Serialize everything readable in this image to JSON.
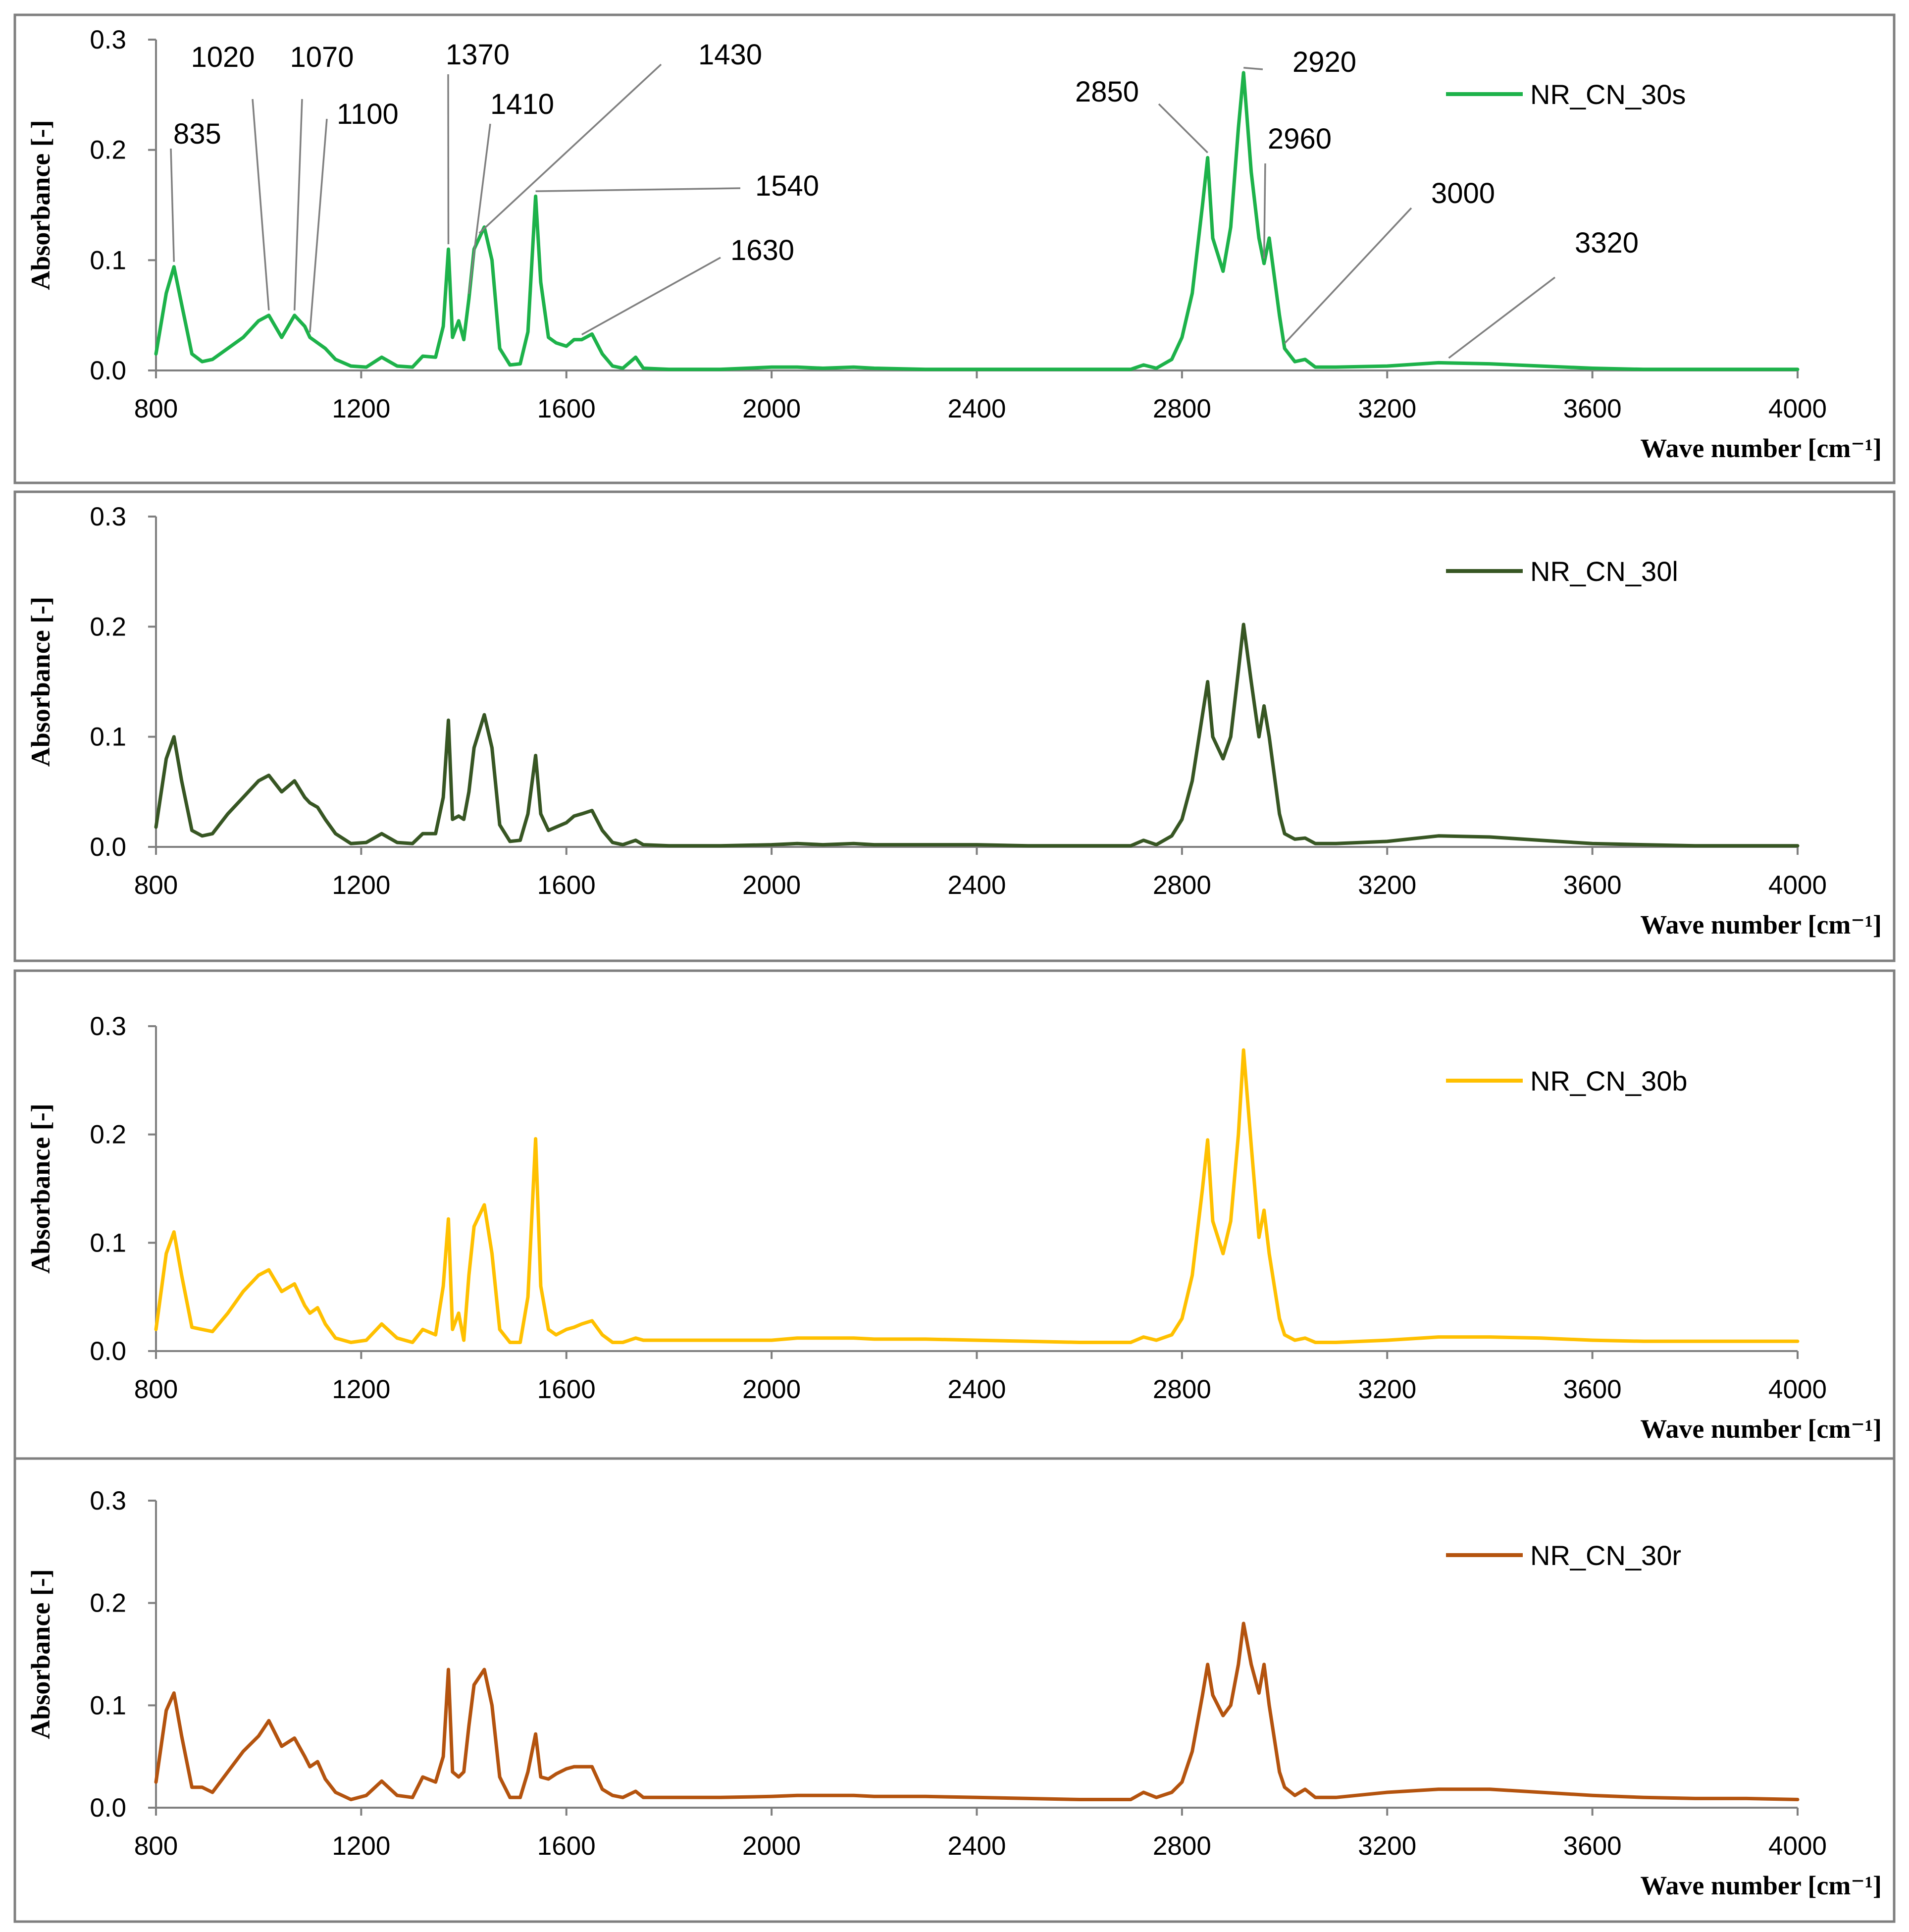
{
  "figure": {
    "panel_count": 4
  },
  "chart_data": [
    {
      "type": "line",
      "title": "",
      "xlabel": "Wave number [cm⁻¹]",
      "ylabel": "Absorbance [-]",
      "xlim": [
        800,
        4000
      ],
      "ylim": [
        0,
        0.3
      ],
      "xticks": [
        "800",
        "1200",
        "1600",
        "2000",
        "2400",
        "2800",
        "3200",
        "3600",
        "4000"
      ],
      "yticks": [
        "0.0",
        "0.1",
        "0.2",
        "0.3"
      ],
      "grid": false,
      "legend": "top-right",
      "series": [
        {
          "name": "NR_CN_30s",
          "color": "#1db24a",
          "x": [
            800,
            820,
            835,
            850,
            870,
            890,
            910,
            940,
            970,
            1000,
            1020,
            1045,
            1070,
            1090,
            1100,
            1115,
            1130,
            1150,
            1180,
            1210,
            1240,
            1270,
            1300,
            1320,
            1345,
            1360,
            1370,
            1378,
            1390,
            1400,
            1410,
            1420,
            1440,
            1455,
            1470,
            1490,
            1510,
            1525,
            1540,
            1550,
            1565,
            1580,
            1600,
            1615,
            1630,
            1650,
            1670,
            1690,
            1710,
            1735,
            1750,
            1800,
            1900,
            2000,
            2050,
            2100,
            2160,
            2200,
            2300,
            2400,
            2500,
            2600,
            2700,
            2725,
            2750,
            2780,
            2800,
            2820,
            2840,
            2850,
            2860,
            2880,
            2895,
            2910,
            2920,
            2935,
            2950,
            2960,
            2970,
            2990,
            3000,
            3020,
            3040,
            3060,
            3100,
            3200,
            3300,
            3400,
            3500,
            3600,
            3700,
            3800,
            3900,
            4000
          ],
          "y": [
            0.015,
            0.07,
            0.094,
            0.06,
            0.015,
            0.008,
            0.01,
            0.02,
            0.03,
            0.045,
            0.05,
            0.03,
            0.05,
            0.04,
            0.03,
            0.025,
            0.02,
            0.01,
            0.004,
            0.003,
            0.012,
            0.004,
            0.003,
            0.013,
            0.012,
            0.04,
            0.11,
            0.03,
            0.045,
            0.028,
            0.065,
            0.11,
            0.13,
            0.1,
            0.02,
            0.005,
            0.006,
            0.035,
            0.158,
            0.08,
            0.03,
            0.025,
            0.022,
            0.028,
            0.028,
            0.033,
            0.015,
            0.004,
            0.002,
            0.012,
            0.002,
            0.001,
            0.001,
            0.003,
            0.003,
            0.002,
            0.003,
            0.002,
            0.001,
            0.001,
            0.001,
            0.001,
            0.001,
            0.005,
            0.002,
            0.01,
            0.03,
            0.07,
            0.15,
            0.193,
            0.12,
            0.09,
            0.13,
            0.22,
            0.27,
            0.18,
            0.12,
            0.097,
            0.12,
            0.05,
            0.02,
            0.008,
            0.01,
            0.003,
            0.003,
            0.004,
            0.007,
            0.006,
            0.004,
            0.002,
            0.001,
            0.001,
            0.001,
            0.001
          ]
        }
      ],
      "annotations": [
        "835",
        "1020",
        "1070",
        "1100",
        "1370",
        "1410",
        "1430",
        "1540",
        "1630",
        "2850",
        "2920",
        "2960",
        "3000",
        "3320"
      ]
    },
    {
      "type": "line",
      "title": "",
      "xlabel": "Wave number [cm⁻¹]",
      "ylabel": "Absorbance [-]",
      "xlim": [
        800,
        4000
      ],
      "ylim": [
        0,
        0.3
      ],
      "xticks": [
        "800",
        "1200",
        "1600",
        "2000",
        "2400",
        "2800",
        "3200",
        "3600",
        "4000"
      ],
      "yticks": [
        "0.0",
        "0.1",
        "0.2",
        "0.3"
      ],
      "grid": false,
      "legend": "top-right",
      "series": [
        {
          "name": "NR_CN_30l",
          "color": "#375623",
          "x": [
            800,
            820,
            835,
            850,
            870,
            890,
            910,
            940,
            970,
            1000,
            1020,
            1045,
            1070,
            1090,
            1100,
            1115,
            1130,
            1150,
            1180,
            1210,
            1240,
            1270,
            1300,
            1320,
            1345,
            1360,
            1370,
            1378,
            1390,
            1400,
            1410,
            1420,
            1440,
            1455,
            1470,
            1490,
            1510,
            1525,
            1540,
            1550,
            1565,
            1580,
            1600,
            1615,
            1630,
            1650,
            1670,
            1690,
            1710,
            1735,
            1750,
            1800,
            1900,
            2000,
            2050,
            2100,
            2160,
            2200,
            2300,
            2400,
            2500,
            2600,
            2700,
            2725,
            2750,
            2780,
            2800,
            2820,
            2840,
            2850,
            2860,
            2880,
            2895,
            2910,
            2920,
            2935,
            2950,
            2960,
            2970,
            2990,
            3000,
            3020,
            3040,
            3060,
            3100,
            3200,
            3300,
            3400,
            3500,
            3600,
            3700,
            3800,
            3900,
            4000
          ],
          "y": [
            0.018,
            0.08,
            0.1,
            0.06,
            0.015,
            0.01,
            0.012,
            0.03,
            0.045,
            0.06,
            0.065,
            0.05,
            0.06,
            0.045,
            0.04,
            0.036,
            0.025,
            0.012,
            0.003,
            0.004,
            0.012,
            0.004,
            0.003,
            0.012,
            0.012,
            0.045,
            0.115,
            0.025,
            0.028,
            0.025,
            0.05,
            0.09,
            0.12,
            0.09,
            0.02,
            0.005,
            0.006,
            0.03,
            0.083,
            0.03,
            0.015,
            0.018,
            0.022,
            0.028,
            0.03,
            0.033,
            0.015,
            0.004,
            0.002,
            0.006,
            0.002,
            0.001,
            0.001,
            0.002,
            0.003,
            0.002,
            0.003,
            0.002,
            0.002,
            0.002,
            0.001,
            0.001,
            0.001,
            0.006,
            0.002,
            0.01,
            0.025,
            0.06,
            0.12,
            0.15,
            0.1,
            0.08,
            0.1,
            0.16,
            0.202,
            0.15,
            0.1,
            0.128,
            0.1,
            0.03,
            0.012,
            0.007,
            0.008,
            0.003,
            0.003,
            0.005,
            0.01,
            0.009,
            0.006,
            0.003,
            0.002,
            0.001,
            0.001,
            0.001
          ]
        }
      ]
    },
    {
      "type": "line",
      "title": "",
      "xlabel": "Wave number [cm⁻¹]",
      "ylabel": "Absorbance [-]",
      "xlim": [
        800,
        4000
      ],
      "ylim": [
        0,
        0.3
      ],
      "xticks": [
        "800",
        "1200",
        "1600",
        "2000",
        "2400",
        "2800",
        "3200",
        "3600",
        "4000"
      ],
      "yticks": [
        "0.0",
        "0.1",
        "0.2",
        "0.3"
      ],
      "grid": false,
      "legend": "top-right",
      "series": [
        {
          "name": "NR_CN_30b",
          "color": "#ffc000",
          "x": [
            800,
            820,
            835,
            850,
            870,
            890,
            910,
            940,
            970,
            1000,
            1020,
            1045,
            1070,
            1090,
            1100,
            1115,
            1130,
            1150,
            1180,
            1210,
            1240,
            1270,
            1300,
            1320,
            1345,
            1360,
            1370,
            1378,
            1390,
            1400,
            1410,
            1420,
            1440,
            1455,
            1470,
            1490,
            1510,
            1525,
            1540,
            1550,
            1565,
            1580,
            1600,
            1615,
            1630,
            1650,
            1670,
            1690,
            1710,
            1735,
            1750,
            1800,
            1900,
            2000,
            2050,
            2100,
            2160,
            2200,
            2300,
            2400,
            2500,
            2600,
            2700,
            2725,
            2750,
            2780,
            2800,
            2820,
            2840,
            2850,
            2860,
            2880,
            2895,
            2910,
            2920,
            2935,
            2950,
            2960,
            2970,
            2990,
            3000,
            3020,
            3040,
            3060,
            3100,
            3200,
            3300,
            3400,
            3500,
            3600,
            3700,
            3800,
            3900,
            4000
          ],
          "y": [
            0.02,
            0.09,
            0.11,
            0.07,
            0.022,
            0.02,
            0.018,
            0.035,
            0.055,
            0.07,
            0.075,
            0.055,
            0.062,
            0.042,
            0.035,
            0.04,
            0.025,
            0.012,
            0.008,
            0.01,
            0.025,
            0.012,
            0.008,
            0.02,
            0.015,
            0.06,
            0.122,
            0.02,
            0.035,
            0.01,
            0.07,
            0.115,
            0.135,
            0.09,
            0.02,
            0.008,
            0.008,
            0.05,
            0.196,
            0.06,
            0.02,
            0.015,
            0.02,
            0.022,
            0.025,
            0.028,
            0.015,
            0.008,
            0.008,
            0.012,
            0.01,
            0.01,
            0.01,
            0.01,
            0.012,
            0.012,
            0.012,
            0.011,
            0.011,
            0.01,
            0.009,
            0.008,
            0.008,
            0.013,
            0.01,
            0.015,
            0.03,
            0.07,
            0.15,
            0.195,
            0.12,
            0.09,
            0.12,
            0.2,
            0.278,
            0.19,
            0.105,
            0.13,
            0.09,
            0.03,
            0.015,
            0.01,
            0.012,
            0.008,
            0.008,
            0.01,
            0.013,
            0.013,
            0.012,
            0.01,
            0.009,
            0.009,
            0.009,
            0.009
          ]
        }
      ]
    },
    {
      "type": "line",
      "title": "",
      "xlabel": "Wave number [cm⁻¹]",
      "ylabel": "Absorbance [-]",
      "xlim": [
        800,
        4000
      ],
      "ylim": [
        0,
        0.3
      ],
      "xticks": [
        "800",
        "1200",
        "1600",
        "2000",
        "2400",
        "2800",
        "3200",
        "3600",
        "4000"
      ],
      "yticks": [
        "0.0",
        "0.1",
        "0.2",
        "0.3"
      ],
      "grid": false,
      "legend": "top-right",
      "series": [
        {
          "name": "NR_CN_30r",
          "color": "#b4530e",
          "x": [
            800,
            820,
            835,
            850,
            870,
            890,
            910,
            940,
            970,
            1000,
            1020,
            1045,
            1070,
            1090,
            1100,
            1115,
            1130,
            1150,
            1180,
            1210,
            1240,
            1270,
            1300,
            1320,
            1345,
            1360,
            1370,
            1378,
            1390,
            1400,
            1410,
            1420,
            1440,
            1455,
            1470,
            1490,
            1510,
            1525,
            1540,
            1550,
            1565,
            1580,
            1600,
            1615,
            1630,
            1650,
            1670,
            1690,
            1710,
            1735,
            1750,
            1800,
            1900,
            2000,
            2050,
            2100,
            2160,
            2200,
            2300,
            2400,
            2500,
            2600,
            2700,
            2725,
            2750,
            2780,
            2800,
            2820,
            2840,
            2850,
            2860,
            2880,
            2895,
            2910,
            2920,
            2935,
            2950,
            2960,
            2970,
            2990,
            3000,
            3020,
            3040,
            3060,
            3100,
            3200,
            3300,
            3400,
            3500,
            3600,
            3700,
            3800,
            3900,
            4000
          ],
          "y": [
            0.025,
            0.095,
            0.112,
            0.07,
            0.02,
            0.02,
            0.015,
            0.035,
            0.055,
            0.07,
            0.085,
            0.06,
            0.068,
            0.05,
            0.04,
            0.045,
            0.028,
            0.015,
            0.008,
            0.012,
            0.026,
            0.012,
            0.01,
            0.03,
            0.025,
            0.05,
            0.135,
            0.035,
            0.03,
            0.035,
            0.08,
            0.12,
            0.135,
            0.1,
            0.03,
            0.01,
            0.01,
            0.035,
            0.072,
            0.03,
            0.028,
            0.033,
            0.038,
            0.04,
            0.04,
            0.04,
            0.018,
            0.012,
            0.01,
            0.016,
            0.01,
            0.01,
            0.01,
            0.011,
            0.012,
            0.012,
            0.012,
            0.011,
            0.011,
            0.01,
            0.009,
            0.008,
            0.008,
            0.015,
            0.01,
            0.015,
            0.025,
            0.055,
            0.11,
            0.14,
            0.11,
            0.09,
            0.1,
            0.14,
            0.18,
            0.14,
            0.112,
            0.14,
            0.1,
            0.035,
            0.02,
            0.012,
            0.018,
            0.01,
            0.01,
            0.015,
            0.018,
            0.018,
            0.015,
            0.012,
            0.01,
            0.009,
            0.009,
            0.008
          ]
        }
      ]
    }
  ]
}
